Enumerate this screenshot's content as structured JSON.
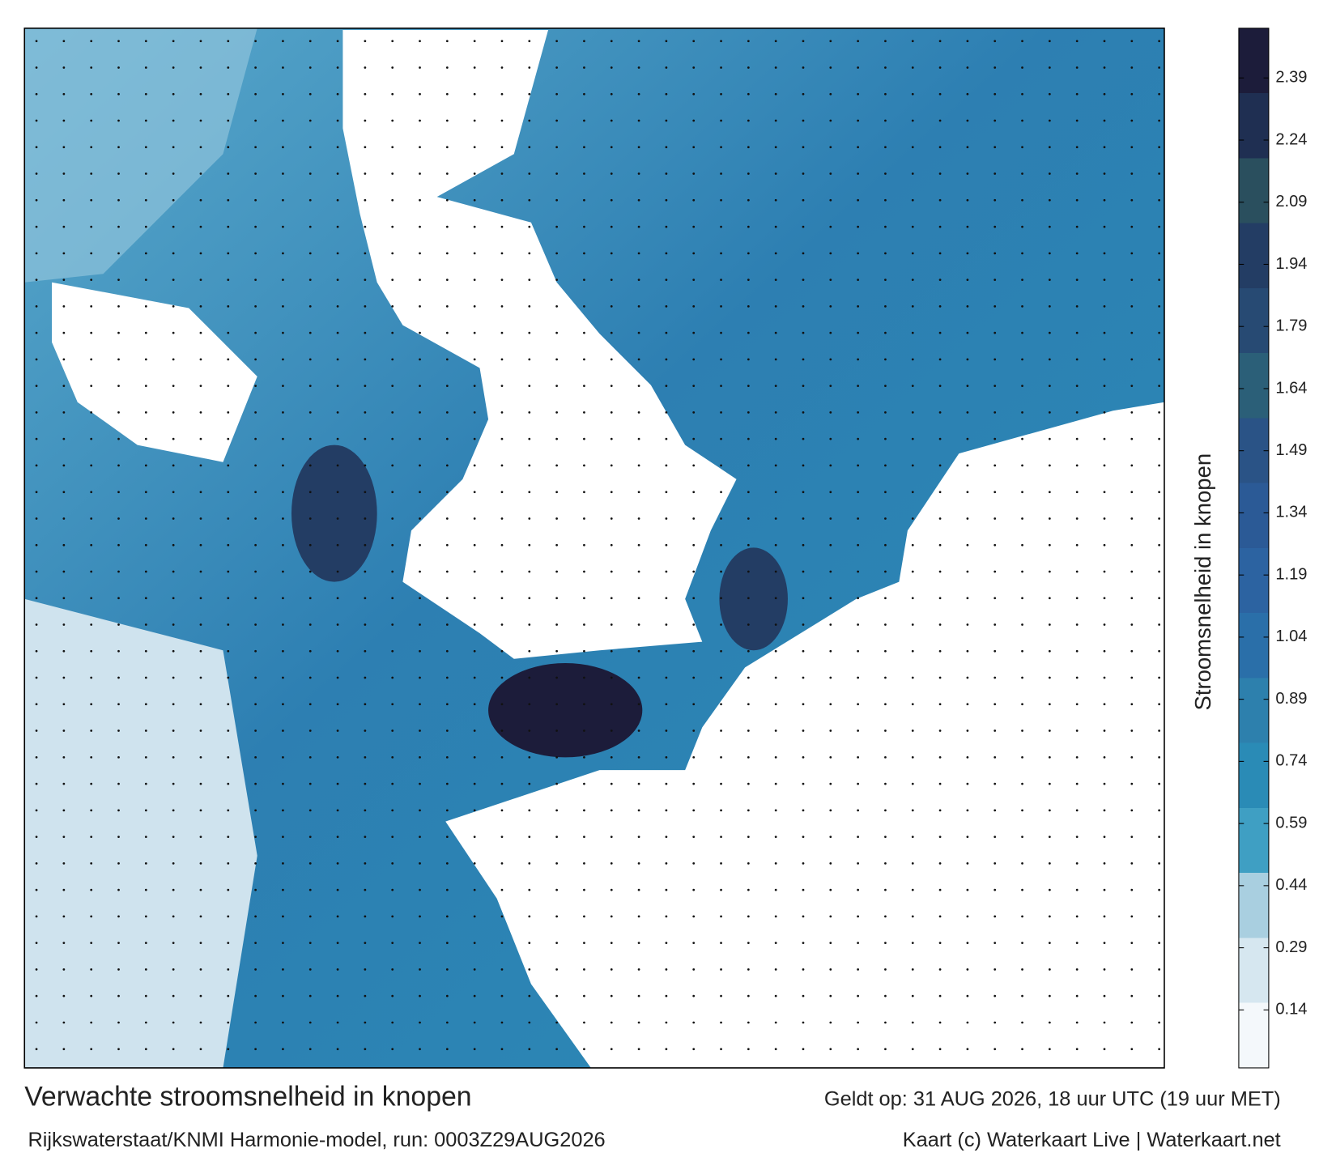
{
  "map": {
    "title": "Verwachte stroomsnelheid in knopen",
    "subtitle": "Rijkswaterstaat/KNMI Harmonie-model, run: 0003Z29AUG2026",
    "valid_time": "Geldt op: 31 AUG 2026, 18 uur UTC (19 uur MET)",
    "credit": "Kaart (c) Waterkaart Live | Waterkaart.net",
    "colorbar": {
      "label": "Stroomsnelheid in knopen",
      "lim": [
        0,
        2.51
      ],
      "ticks": [
        0.14,
        0.29,
        0.44,
        0.59,
        0.74,
        0.89,
        1.04,
        1.19,
        1.34,
        1.49,
        1.64,
        1.79,
        1.94,
        2.09,
        2.24,
        2.39
      ],
      "colors": [
        "#f4f8fb",
        "#d6e7f0",
        "#a9cfe0",
        "#3f9fc3",
        "#2a8bb6",
        "#2d80ad",
        "#2a6fa9",
        "#2c63a1",
        "#2b5a96",
        "#2a5386",
        "#2b5f78",
        "#274a73",
        "#233d64",
        "#2a4f5e",
        "#1f2f52",
        "#1c1c3a"
      ]
    }
  }
}
